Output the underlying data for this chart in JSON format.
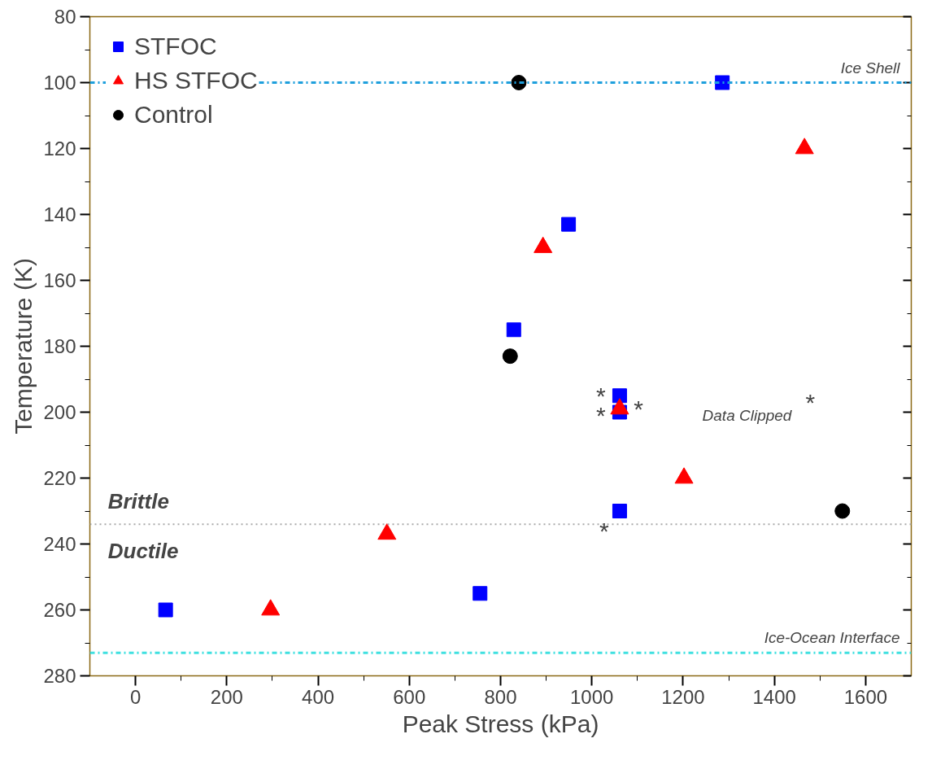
{
  "chart_data": {
    "type": "scatter",
    "xlabel": "Peak Stress (kPa)",
    "ylabel": "Temperature (K)",
    "xlim": [
      -100,
      1700
    ],
    "xticks": [
      0,
      200,
      400,
      600,
      800,
      1000,
      1200,
      1400,
      1600
    ],
    "ylim": [
      280,
      80
    ],
    "yticks": [
      80,
      100,
      120,
      140,
      160,
      180,
      200,
      220,
      240,
      260,
      280
    ],
    "grid": false,
    "legend": "top left",
    "series": [
      {
        "name": "STFOC",
        "color": "#0000ff",
        "marker": "square",
        "x": [
          1286,
          949,
          829,
          1061,
          1061,
          1061,
          755,
          66
        ],
        "values": [
          100,
          143,
          175,
          195,
          200,
          230,
          255,
          260
        ]
      },
      {
        "name": "HS STFOC",
        "color": "#ff0000",
        "marker": "triangle",
        "x": [
          1466,
          893,
          1061,
          1202,
          551,
          296
        ],
        "values": [
          120,
          150,
          199,
          220,
          237,
          260
        ]
      },
      {
        "name": "Control",
        "color": "#000000",
        "marker": "circle",
        "x": [
          840,
          821,
          1549
        ],
        "values": [
          100,
          183,
          230
        ]
      }
    ],
    "ref_lines": [
      {
        "axis": "y",
        "value": 100,
        "label": "Ice Shell",
        "color": "#1e9fdc",
        "line_style": "dashdot"
      },
      {
        "axis": "y",
        "value": 273,
        "label": "Ice-Ocean Interface",
        "color": "#40e0e0",
        "line_style": "dashdot"
      },
      {
        "axis": "y",
        "value": 234,
        "color": "#aaaaaa",
        "line_style": "dotted"
      }
    ],
    "annotations": [
      "Brittle",
      "Ductile",
      "Data Clipped",
      "*",
      "*",
      "*",
      "*",
      "*"
    ]
  }
}
